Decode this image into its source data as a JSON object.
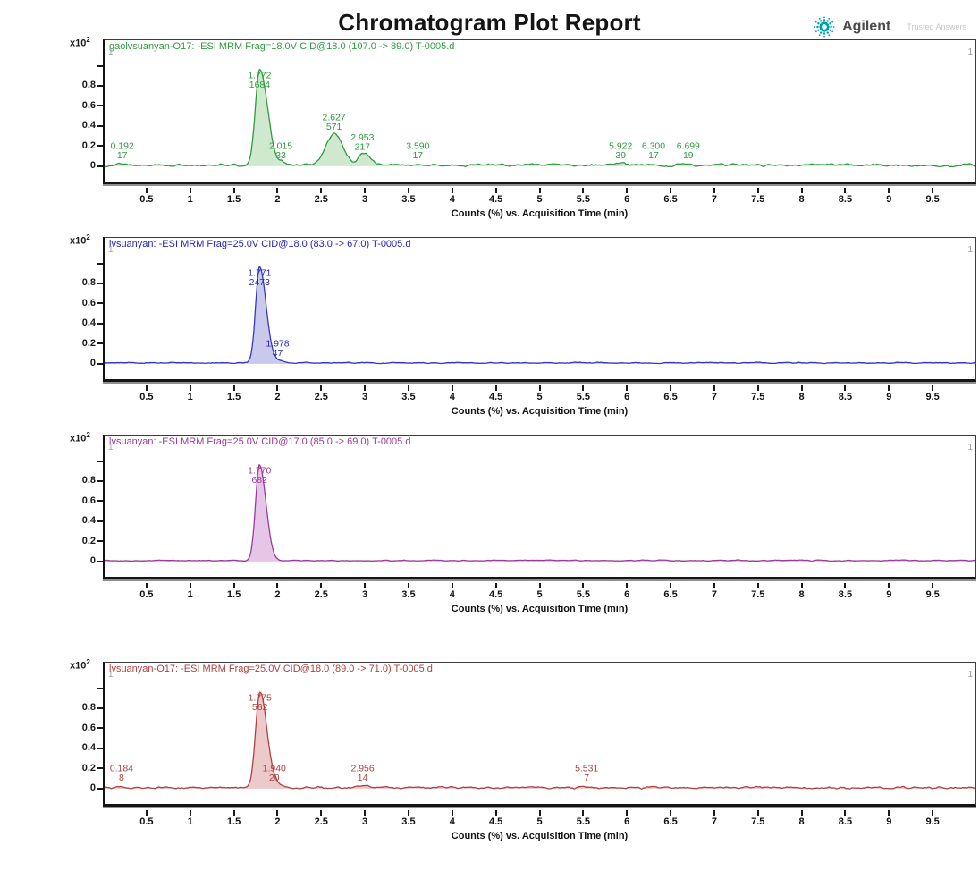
{
  "report": {
    "title": "Chromatogram Plot Report"
  },
  "logo": {
    "brand": "Agilent",
    "tagline": "Trusted Answers",
    "spark_color": "#00a0b0",
    "brand_color": "#4c4c4c"
  },
  "chart_data": [
    {
      "type": "area",
      "title": "gaolvsuanyan-O17: -ESI MRM Frag=18.0V CID@18.0 (107.0 -> 89.0) T-0005.d",
      "line_color": "#2f9b40",
      "fill_color": "#cfe9cf",
      "text_color": "#2f9b40",
      "xlabel": "Counts (%) vs. Acquisition Time (min)",
      "ylabel_scale": {
        "base": "x10",
        "exp": "2"
      },
      "x_range": [
        0,
        10
      ],
      "x_ticks": [
        "0.5",
        "1",
        "1.5",
        "2",
        "2.5",
        "3",
        "3.5",
        "4",
        "4.5",
        "5",
        "5.5",
        "6",
        "6.5",
        "7",
        "7.5",
        "8",
        "8.5",
        "9",
        "9.5"
      ],
      "y_ticks": [
        {
          "v": 1.0,
          "label": ""
        },
        {
          "v": 0.8,
          "label": "0.8"
        },
        {
          "v": 0.6,
          "label": "0.6"
        },
        {
          "v": 0.4,
          "label": "0.4"
        },
        {
          "v": 0.2,
          "label": "0.2"
        },
        {
          "v": 0,
          "label": "0"
        }
      ],
      "corner_markers": [
        "1",
        "1"
      ],
      "peaks": [
        {
          "time": 0.192,
          "value": 17,
          "width": [
            0.05,
            0.05
          ]
        },
        {
          "time": 1.772,
          "value": 1684,
          "width": [
            0.05,
            0.09
          ]
        },
        {
          "time": 2.015,
          "value": 33,
          "width": [
            0.04,
            0.06
          ]
        },
        {
          "time": 2.627,
          "value": 571,
          "width": [
            0.09,
            0.1
          ]
        },
        {
          "time": 2.953,
          "value": 217,
          "width": [
            0.05,
            0.09
          ]
        },
        {
          "time": 3.59,
          "value": 17,
          "width": [
            0.06,
            0.06
          ]
        },
        {
          "time": 5.922,
          "value": 39,
          "width": [
            0.05,
            0.06
          ]
        },
        {
          "time": 6.3,
          "value": 17,
          "width": [
            0.05,
            0.05
          ]
        },
        {
          "time": 6.699,
          "value": 19,
          "width": [
            0.05,
            0.05
          ]
        }
      ],
      "noise_amp": 0.015,
      "seed": 7
    },
    {
      "type": "area",
      "title": "lvsuanyan: -ESI MRM Frag=25.0V CID@18.0 (83.0 -> 67.0) T-0005.d",
      "line_color": "#3838bf",
      "fill_color": "#c9c9ec",
      "text_color": "#2525c0",
      "xlabel": "Counts (%) vs. Acquisition Time (min)",
      "ylabel_scale": {
        "base": "x10",
        "exp": "2"
      },
      "x_range": [
        0,
        10
      ],
      "x_ticks": [
        "0.5",
        "1",
        "1.5",
        "2",
        "2.5",
        "3",
        "3.5",
        "4",
        "4.5",
        "5",
        "5.5",
        "6",
        "6.5",
        "7",
        "7.5",
        "8",
        "8.5",
        "9",
        "9.5"
      ],
      "y_ticks": [
        {
          "v": 1.0,
          "label": ""
        },
        {
          "v": 0.8,
          "label": "0.8"
        },
        {
          "v": 0.6,
          "label": "0.6"
        },
        {
          "v": 0.4,
          "label": "0.4"
        },
        {
          "v": 0.2,
          "label": "0.2"
        },
        {
          "v": 0,
          "label": "0"
        }
      ],
      "corner_markers": [
        "1",
        "1"
      ],
      "peaks": [
        {
          "time": 1.771,
          "value": 2473,
          "width": [
            0.045,
            0.075
          ]
        },
        {
          "time": 1.978,
          "value": 47,
          "width": [
            0.05,
            0.08
          ]
        }
      ],
      "noise_amp": 0.007,
      "seed": 11
    },
    {
      "type": "area",
      "title": "lvsuanyan: -ESI MRM Frag=25.0V CID@17.0 (85.0 -> 69.0) T-0005.d",
      "line_color": "#9c3a9c",
      "fill_color": "#e6c6e6",
      "text_color": "#9c3a9c",
      "xlabel": "Counts (%) vs. Acquisition Time (min)",
      "ylabel_scale": {
        "base": "x10",
        "exp": "2"
      },
      "x_range": [
        0,
        10
      ],
      "x_ticks": [
        "0.5",
        "1",
        "1.5",
        "2",
        "2.5",
        "3",
        "3.5",
        "4",
        "4.5",
        "5",
        "5.5",
        "6",
        "6.5",
        "7",
        "7.5",
        "8",
        "8.5",
        "9",
        "9.5"
      ],
      "y_ticks": [
        {
          "v": 1.0,
          "label": ""
        },
        {
          "v": 0.8,
          "label": "0.8"
        },
        {
          "v": 0.6,
          "label": "0.6"
        },
        {
          "v": 0.4,
          "label": "0.4"
        },
        {
          "v": 0.2,
          "label": "0.2"
        },
        {
          "v": 0,
          "label": "0"
        }
      ],
      "corner_markers": [
        "1",
        "1"
      ],
      "peaks": [
        {
          "time": 1.77,
          "value": 682,
          "width": [
            0.045,
            0.075
          ]
        }
      ],
      "noise_amp": 0.006,
      "seed": 13
    },
    {
      "type": "area",
      "title": "lvsuanyan-O17: -ESI MRM Frag=25.0V CID@18.0 (89.0 -> 71.0) T-0005.d",
      "line_color": "#b04040",
      "fill_color": "#eccaca",
      "text_color": "#b04040",
      "xlabel": "Counts (%) vs. Acquisition Time (min)",
      "ylabel_scale": {
        "base": "x10",
        "exp": "2"
      },
      "x_range": [
        0,
        10
      ],
      "x_ticks": [
        "0.5",
        "1",
        "1.5",
        "2",
        "2.5",
        "3",
        "3.5",
        "4",
        "4.5",
        "5",
        "5.5",
        "6",
        "6.5",
        "7",
        "7.5",
        "8",
        "8.5",
        "9",
        "9.5"
      ],
      "y_ticks": [
        {
          "v": 1.0,
          "label": ""
        },
        {
          "v": 0.8,
          "label": "0.8"
        },
        {
          "v": 0.6,
          "label": "0.6"
        },
        {
          "v": 0.4,
          "label": "0.4"
        },
        {
          "v": 0.2,
          "label": "0.2"
        },
        {
          "v": 0,
          "label": "0"
        }
      ],
      "corner_markers": [
        "1",
        "1"
      ],
      "peaks": [
        {
          "time": 0.184,
          "value": 8,
          "width": [
            0.05,
            0.05
          ]
        },
        {
          "time": 1.775,
          "value": 562,
          "width": [
            0.05,
            0.08
          ]
        },
        {
          "time": 1.94,
          "value": 20,
          "width": [
            0.05,
            0.07
          ]
        },
        {
          "time": 2.956,
          "value": 14,
          "width": [
            0.05,
            0.06
          ]
        },
        {
          "time": 5.531,
          "value": 7,
          "width": [
            0.05,
            0.05
          ]
        }
      ],
      "noise_amp": 0.013,
      "seed": 17
    }
  ],
  "layout": {
    "panel_tops": [
      44,
      265,
      486,
      740
    ]
  }
}
